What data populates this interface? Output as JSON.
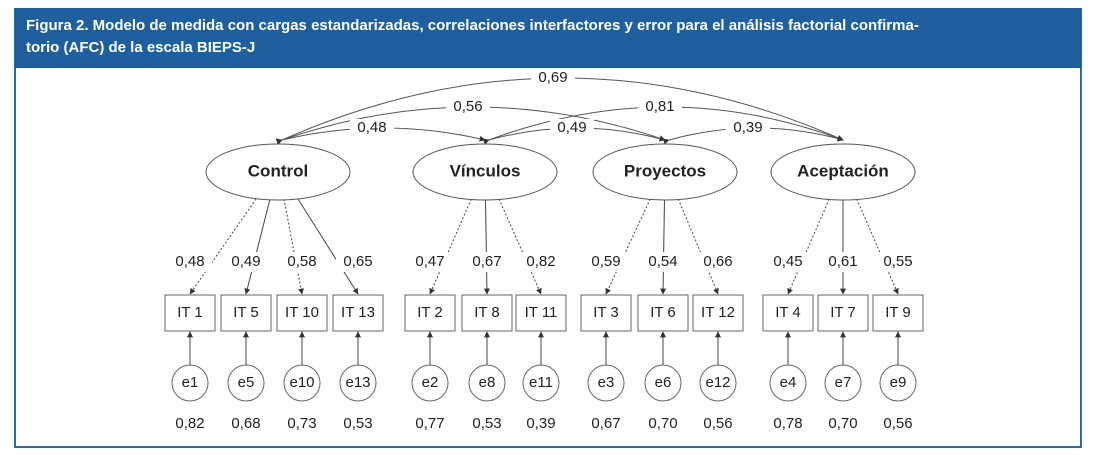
{
  "header": {
    "title_lines": [
      "Figura 2. Modelo de medida con cargas estandarizadas, correlaciones interfactores y error para el análisis factorial confirma-",
      "torio (AFC) de la escala BIEPS-J"
    ]
  },
  "factors": [
    {
      "label": "Control",
      "items": [
        {
          "item": "IT 1",
          "loading": "0,48",
          "error": "e1",
          "error_value": "0,82"
        },
        {
          "item": "IT 5",
          "loading": "0,49",
          "error": "e5",
          "error_value": "0,68"
        },
        {
          "item": "IT 10",
          "loading": "0,58",
          "error": "e10",
          "error_value": "0,73"
        },
        {
          "item": "IT 13",
          "loading": "0,65",
          "error": "e13",
          "error_value": "0,53"
        }
      ]
    },
    {
      "label": "Vínculos",
      "items": [
        {
          "item": "IT 2",
          "loading": "0,47",
          "error": "e2",
          "error_value": "0,77"
        },
        {
          "item": "IT 8",
          "loading": "0,67",
          "error": "e8",
          "error_value": "0,53"
        },
        {
          "item": "IT 11",
          "loading": "0,82",
          "error": "e11",
          "error_value": "0,39"
        }
      ]
    },
    {
      "label": "Proyectos",
      "items": [
        {
          "item": "IT 3",
          "loading": "0,59",
          "error": "e3",
          "error_value": "0,67"
        },
        {
          "item": "IT 6",
          "loading": "0,54",
          "error": "e6",
          "error_value": "0,70"
        },
        {
          "item": "IT 12",
          "loading": "0,66",
          "error": "e12",
          "error_value": "0,56"
        }
      ]
    },
    {
      "label": "Aceptación",
      "items": [
        {
          "item": "IT 4",
          "loading": "0,45",
          "error": "e4",
          "error_value": "0,78"
        },
        {
          "item": "IT 7",
          "loading": "0,61",
          "error": "e7",
          "error_value": "0,70"
        },
        {
          "item": "IT 9",
          "loading": "0,55",
          "error": "e9",
          "error_value": "0,56"
        }
      ]
    }
  ],
  "correlations": [
    "0,69",
    "0,56",
    "0,81",
    "0,48",
    "0,49",
    "0,39"
  ]
}
